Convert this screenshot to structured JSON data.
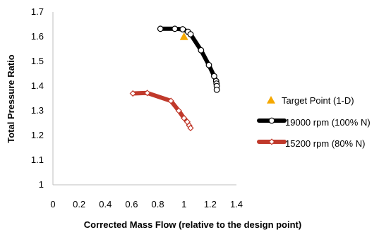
{
  "chart_data": {
    "type": "scatter",
    "xlabel": "Corrected Mass Flow (relative to the design point)",
    "ylabel": "Total Pressure Ratio",
    "xlim": [
      0,
      1.4
    ],
    "ylim": [
      1,
      1.7
    ],
    "x_ticks": [
      "0",
      "0.2",
      "0.4",
      "0.6",
      "0.8",
      "1",
      "1.2",
      "1.4"
    ],
    "y_ticks": [
      "1",
      "1.1",
      "1.2",
      "1.3",
      "1.4",
      "1.5",
      "1.6",
      "1.7"
    ],
    "grid": false,
    "legend_position": "right",
    "series": [
      {
        "name": "Target Point (1-D)",
        "style": "marker",
        "marker": "triangle",
        "color": "#f5a800",
        "points": [
          [
            1.0,
            1.6
          ]
        ]
      },
      {
        "name": "19000 rpm (100% N)",
        "style": "line-marker",
        "marker": "circle",
        "color": "#000000",
        "points": [
          [
            0.82,
            1.632
          ],
          [
            0.93,
            1.632
          ],
          [
            0.99,
            1.63
          ],
          [
            1.03,
            1.62
          ],
          [
            1.05,
            1.61
          ],
          [
            1.13,
            1.545
          ],
          [
            1.19,
            1.485
          ],
          [
            1.23,
            1.44
          ],
          [
            1.245,
            1.42
          ],
          [
            1.248,
            1.41
          ],
          [
            1.25,
            1.4
          ],
          [
            1.25,
            1.385
          ]
        ]
      },
      {
        "name": "15200 rpm (80% N)",
        "style": "line-marker",
        "marker": "diamond",
        "color": "#c0392b",
        "points": [
          [
            0.61,
            1.37
          ],
          [
            0.72,
            1.372
          ],
          [
            0.9,
            1.34
          ],
          [
            0.96,
            1.3
          ],
          [
            1.0,
            1.27
          ],
          [
            1.025,
            1.255
          ],
          [
            1.04,
            1.24
          ],
          [
            1.05,
            1.23
          ]
        ]
      }
    ]
  }
}
